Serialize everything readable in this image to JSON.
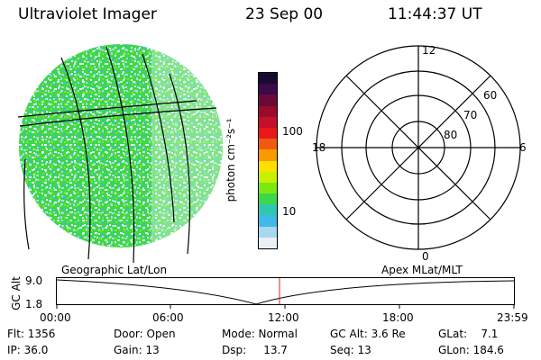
{
  "header": {
    "title": "Ultraviolet Imager",
    "date": "23 Sep 00",
    "time": "11:44:37 UT"
  },
  "colorbar": {
    "unit_label": "photon cm⁻²s⁻¹",
    "ticks": [
      "100",
      "10"
    ],
    "colors_top_to_bottom": [
      "#1a0a30",
      "#3a0a4a",
      "#6a0a3a",
      "#9a0a2a",
      "#c4102a",
      "#e8181a",
      "#f05a10",
      "#f89a00",
      "#fce000",
      "#c8f000",
      "#7ce810",
      "#3cd84a",
      "#2ec8b0",
      "#40b8e8",
      "#a8d8f0",
      "#e8f0f8"
    ]
  },
  "polar": {
    "mlt_labels": [
      "12",
      "18",
      "6",
      "0"
    ],
    "mlat_labels": [
      "60",
      "70",
      "80"
    ]
  },
  "geo_label": "Geographic Lat/Lon",
  "apex_label": "Apex MLat/MLT",
  "altitude_plot": {
    "ylabel": "GC Alt",
    "y_ticks": [
      "9.0",
      "1.8"
    ],
    "x_ticks": [
      "00:00",
      "06:00",
      "12:00",
      "18:00",
      "23:59"
    ]
  },
  "footer": {
    "row1": [
      {
        "text": "Flt: 1356"
      },
      {
        "text": "Door: Open"
      },
      {
        "text": "Mode: Normal"
      },
      {
        "text": "GC Alt: 3.6 Re"
      },
      {
        "text": "GLat:    7.1"
      }
    ],
    "row2": [
      {
        "text": "IP: 36.0"
      },
      {
        "text": "Gain: 13"
      },
      {
        "text": "Dsp:     13.7"
      },
      {
        "text": "Seq: 13"
      },
      {
        "text": "GLon: 184.6"
      }
    ]
  }
}
